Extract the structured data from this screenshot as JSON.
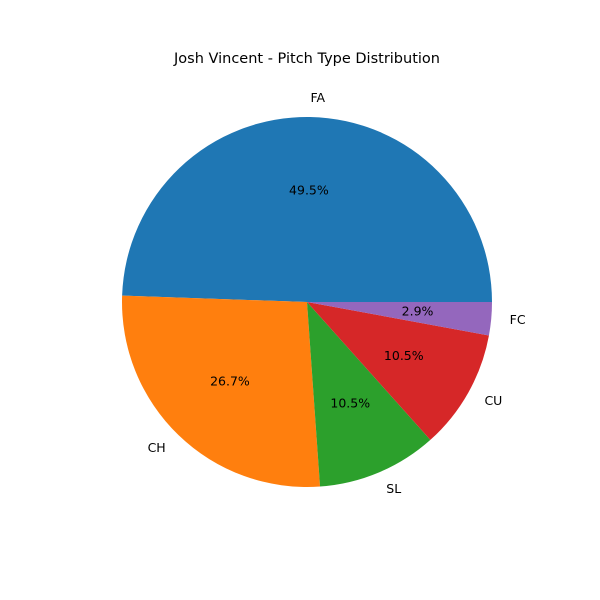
{
  "chart_data": {
    "type": "pie",
    "title": "Josh Vincent - Pitch Type Distribution",
    "categories": [
      "FA",
      "CH",
      "SL",
      "CU",
      "FC"
    ],
    "values": [
      49.5,
      26.7,
      10.5,
      10.5,
      2.9
    ],
    "percent_labels": [
      "49.5%",
      "26.7%",
      "10.5%",
      "10.5%",
      "2.9%"
    ],
    "colors": [
      "#1f77b4",
      "#ff7f0e",
      "#2ca02c",
      "#d62728",
      "#9467bd"
    ],
    "start_angle_deg": 0,
    "direction": "counterclockwise"
  }
}
